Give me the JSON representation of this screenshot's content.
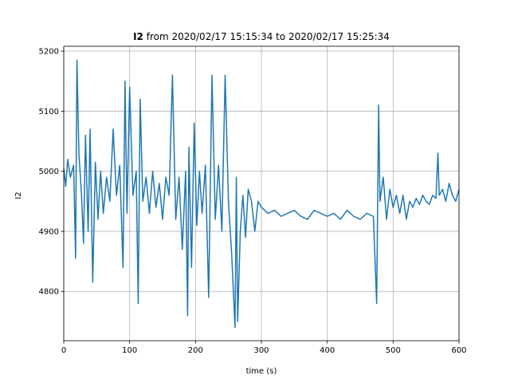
{
  "chart_data": {
    "type": "line",
    "title_bold": "I2",
    "title_rest": " from 2020/02/17 15:15:34 to 2020/02/17 15:25:34",
    "xlabel": "time (s)",
    "ylabel": "I2",
    "xlim": [
      0,
      600
    ],
    "ylim": [
      4718,
      5208
    ],
    "xticks": [
      0,
      100,
      200,
      300,
      400,
      500,
      600
    ],
    "yticks": [
      4800,
      4900,
      5000,
      5100,
      5200
    ],
    "grid": true,
    "colors": {
      "series": "#1f77b4",
      "grid": "#b0b0b0",
      "axes": "#000000"
    },
    "series": [
      {
        "x": [
          0,
          3,
          6,
          10,
          15,
          18,
          20,
          23,
          27,
          30,
          33,
          37,
          40,
          44,
          48,
          52,
          56,
          60,
          65,
          70,
          75,
          80,
          85,
          90,
          93,
          96,
          100,
          105,
          110,
          113,
          116,
          120,
          125,
          130,
          135,
          140,
          145,
          150,
          155,
          160,
          165,
          170,
          175,
          180,
          185,
          188,
          190,
          194,
          198,
          202,
          206,
          210,
          215,
          220,
          225,
          230,
          235,
          240,
          245,
          250,
          255,
          260,
          262,
          264,
          268,
          272,
          276,
          280,
          285,
          290,
          295,
          300,
          310,
          320,
          330,
          340,
          350,
          360,
          370,
          380,
          390,
          400,
          410,
          420,
          430,
          440,
          450,
          460,
          470,
          475,
          478,
          480,
          485,
          490,
          495,
          500,
          505,
          510,
          515,
          520,
          525,
          530,
          535,
          540,
          545,
          550,
          555,
          560,
          565,
          568,
          570,
          575,
          580,
          585,
          590,
          595,
          600
        ],
        "y": [
          5005,
          4975,
          5020,
          4990,
          5010,
          4855,
          5185,
          5030,
          4960,
          4880,
          5060,
          4900,
          5070,
          4815,
          5015,
          4920,
          5000,
          4930,
          4990,
          4950,
          5070,
          4960,
          5010,
          4840,
          5150,
          4930,
          5140,
          4960,
          5000,
          4780,
          5120,
          4950,
          4990,
          4930,
          5000,
          4940,
          4980,
          4920,
          4990,
          4960,
          5160,
          4920,
          4990,
          4870,
          5000,
          4760,
          5040,
          4840,
          5080,
          4910,
          5000,
          4930,
          5010,
          4790,
          5160,
          4920,
          5010,
          4900,
          5160,
          4950,
          4860,
          4740,
          4990,
          4750,
          4900,
          4960,
          4890,
          4970,
          4950,
          4900,
          4950,
          4940,
          4930,
          4935,
          4925,
          4930,
          4935,
          4925,
          4920,
          4935,
          4930,
          4925,
          4930,
          4920,
          4935,
          4925,
          4920,
          4930,
          4925,
          4780,
          5110,
          4950,
          4990,
          4920,
          4970,
          4940,
          4960,
          4930,
          4960,
          4920,
          4950,
          4940,
          4955,
          4945,
          4960,
          4950,
          4945,
          4960,
          4955,
          5030,
          4960,
          4970,
          4950,
          4980,
          4960,
          4950,
          4970
        ]
      }
    ]
  }
}
